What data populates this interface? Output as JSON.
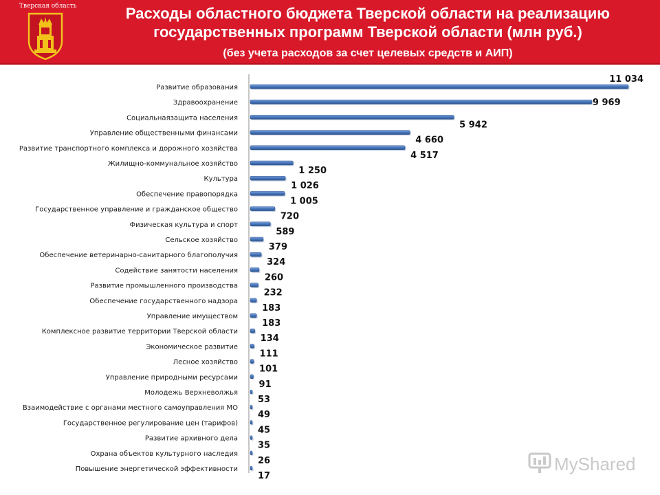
{
  "header": {
    "region_label": "Тверская область",
    "title_line1": "Расходы областного бюджета Тверской области на реализацию",
    "title_line2": "государственных программ Тверской области (млн руб.)",
    "subtitle": "(без учета расходов за счет целевых средств и АИП)"
  },
  "colors": {
    "header_bg": "#d8192a",
    "bar": "#4a78be",
    "bar_dark": "#2e568f",
    "emblem": "#f2c21b"
  },
  "watermark": {
    "text": "MyShared"
  },
  "chart_data": {
    "type": "bar",
    "orientation": "horizontal",
    "title": "Расходы областного бюджета Тверской области на реализацию государственных программ Тверской области (млн руб.)",
    "subtitle": "(без учета расходов за счет целевых средств и АИП)",
    "xlim": [
      0,
      11034
    ],
    "grid": false,
    "legend": "none",
    "categories": [
      "Развитие образования",
      "Здравоохранение",
      "Социальнаязащита населения",
      "Управление общественными финансами",
      "Развитие транспортного комплекса и дорожного хозяйства",
      "Жилищно-коммунальное хозяйство",
      "Культура",
      "Обеспечение правопорядка",
      "Государственное управление и гражданское общество",
      "Физическая культура и спорт",
      "Сельское хозяйство",
      "Обеспечение ветеринарно-санитарного благополучия",
      "Содействие занятости населения",
      "Развитие промышленного производства",
      "Обеспечение государственного надзора",
      "Управление имуществом",
      "Комплексное развитие территории Тверской области",
      "Экономическое развитие",
      "Лесное хозяйство",
      "Управление природными ресурсами",
      "Молодежь Верхневолжья",
      "Взаимодействие с органами местного самоуправления МО",
      "Государственное регулирование цен (тарифов)",
      "Развитие архивного дела",
      "Охрана объектов культурного наследия",
      "Повышение энергетической эффективности"
    ],
    "values": [
      11034,
      9969,
      5942,
      4660,
      4517,
      1250,
      1026,
      1005,
      720,
      589,
      379,
      324,
      260,
      232,
      183,
      183,
      134,
      111,
      101,
      91,
      53,
      49,
      45,
      35,
      26,
      17
    ],
    "value_labels": [
      "11 034",
      "9 969",
      "5 942",
      "4 660",
      "4 517",
      "1 250",
      "1 026",
      "1 005",
      "720",
      "589",
      "379",
      "324",
      "260",
      "232",
      "183",
      "183",
      "134",
      "111",
      "101",
      "91",
      "53",
      "49",
      "45",
      "35",
      "26",
      "17"
    ]
  }
}
